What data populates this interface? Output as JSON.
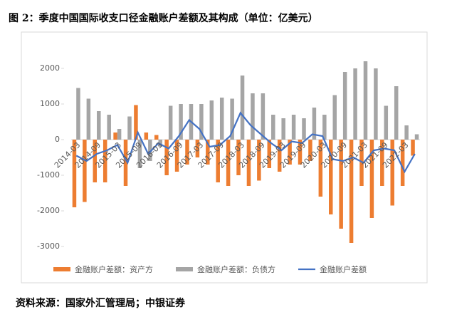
{
  "chart_data": {
    "type": "bar",
    "title": "图 2：季度中国国际收支口径金融账户差额及其构成（单位：亿美元）",
    "source": "资料来源：国家外汇管理局；中银证券",
    "categories": [
      "2014-03",
      null,
      "2014-09",
      null,
      "2015-03",
      null,
      "2015-09",
      null,
      "2016-03",
      null,
      "2016-09",
      null,
      "2017-03",
      null,
      "2017-09",
      null,
      "2018-03",
      null,
      "2018-09",
      null,
      "2019-03",
      null,
      "2019-09",
      null,
      "2020-03",
      null,
      "2020-09",
      null,
      "2021-03",
      null,
      "2021-09",
      null,
      "2022-03",
      null
    ],
    "series": [
      {
        "name": "金融账户差额：资产方",
        "type": "bar",
        "color": "#ed7d31",
        "values": [
          -1900,
          -1750,
          -1200,
          -1200,
          200,
          -1300,
          970,
          200,
          130,
          -1000,
          -900,
          -700,
          -500,
          -700,
          -1200,
          -1300,
          -1000,
          -1300,
          -1150,
          -800,
          -900,
          -700,
          -700,
          -600,
          -1600,
          -2100,
          -2500,
          -2900,
          -1300,
          -2200,
          -1300,
          -1850,
          -1300,
          -450
        ]
      },
      {
        "name": "金融账户差额：负债方",
        "type": "bar",
        "color": "#a5a5a5",
        "values": [
          1450,
          1150,
          800,
          700,
          300,
          650,
          -800,
          -600,
          -200,
          950,
          1000,
          1000,
          1000,
          1100,
          1180,
          1150,
          1800,
          1300,
          1300,
          700,
          600,
          700,
          600,
          900,
          700,
          1250,
          1900,
          2000,
          2200,
          2000,
          950,
          1500,
          400,
          150
        ]
      },
      {
        "name": "金融账户差额",
        "type": "line",
        "color": "#4472c4",
        "values": [
          -450,
          -600,
          -400,
          -300,
          -150,
          -650,
          200,
          -400,
          -100,
          -250,
          100,
          550,
          300,
          -200,
          -150,
          100,
          750,
          400,
          150,
          -100,
          -300,
          -50,
          -100,
          150,
          100,
          -550,
          -600,
          -500,
          -650,
          -300,
          -250,
          -300,
          -900,
          -400
        ]
      }
    ],
    "ylim": [
      -3500,
      2700
    ],
    "yticks": [
      -3000,
      -2000,
      -1000,
      0,
      1000,
      2000
    ],
    "grid": false,
    "legend": "bottom"
  }
}
